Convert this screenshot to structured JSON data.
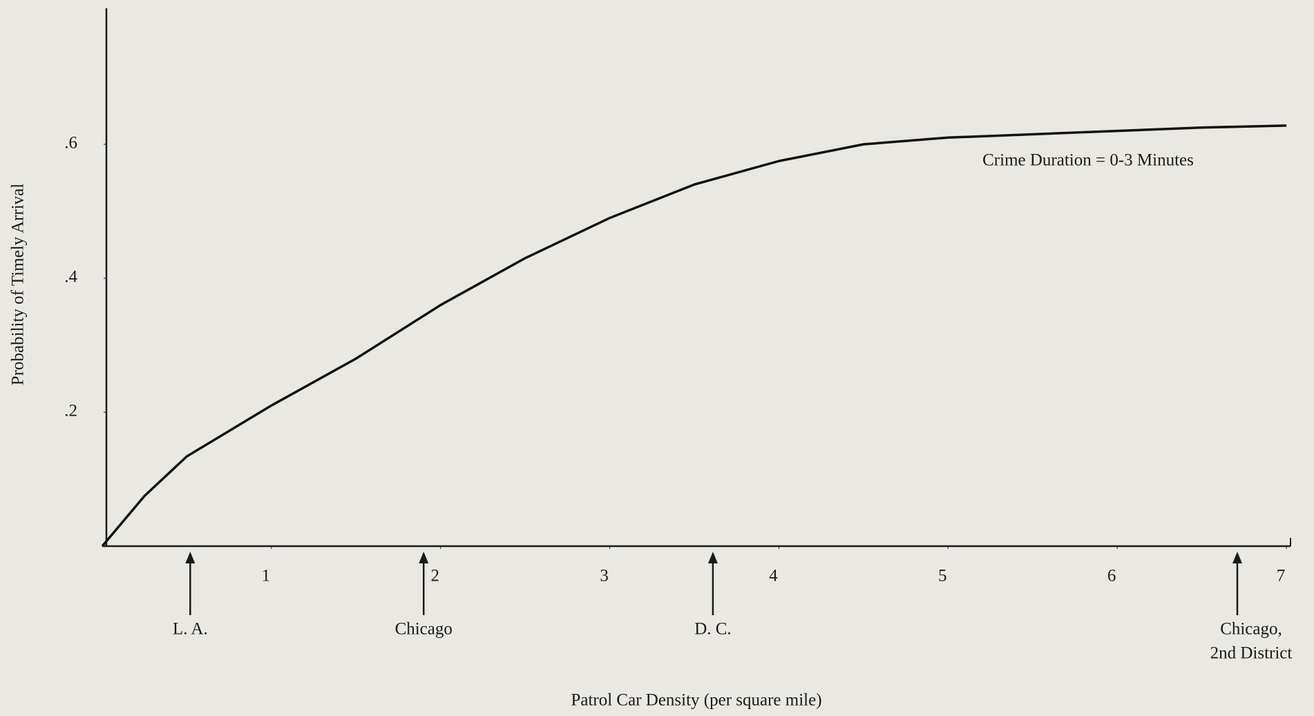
{
  "chart_data": {
    "type": "line",
    "xlabel": "Patrol Car Density (per square mile)",
    "ylabel": "Probability of Timely Arrival",
    "x": [
      0,
      0.25,
      0.5,
      1,
      1.5,
      2,
      2.5,
      3,
      3.5,
      4,
      4.5,
      5,
      5.5,
      6,
      6.5,
      7
    ],
    "series": [
      {
        "name": "Crime Duration = 0-3 Minutes",
        "color": "#111111",
        "values": [
          0,
          0.075,
          0.134,
          0.21,
          0.28,
          0.36,
          0.43,
          0.49,
          0.54,
          0.575,
          0.6,
          0.61,
          0.615,
          0.62,
          0.625,
          0.628
        ]
      }
    ],
    "xlim": [
      0,
      7
    ],
    "xticks": [
      1,
      2,
      3,
      4,
      5,
      6,
      7
    ],
    "ylim": [
      0,
      0.8
    ],
    "yticks": [
      {
        "value": 0.2,
        "label": ".2"
      },
      {
        "value": 0.4,
        "label": ".4"
      },
      {
        "value": 0.6,
        "label": ".6"
      }
    ],
    "annotations": [
      {
        "x": 0.52,
        "lines": [
          "L. A."
        ]
      },
      {
        "x": 1.9,
        "lines": [
          "Chicago"
        ]
      },
      {
        "x": 3.61,
        "lines": [
          "D. C."
        ]
      },
      {
        "x": 6.71,
        "lines": [
          "Chicago,",
          "2nd District"
        ]
      }
    ]
  }
}
